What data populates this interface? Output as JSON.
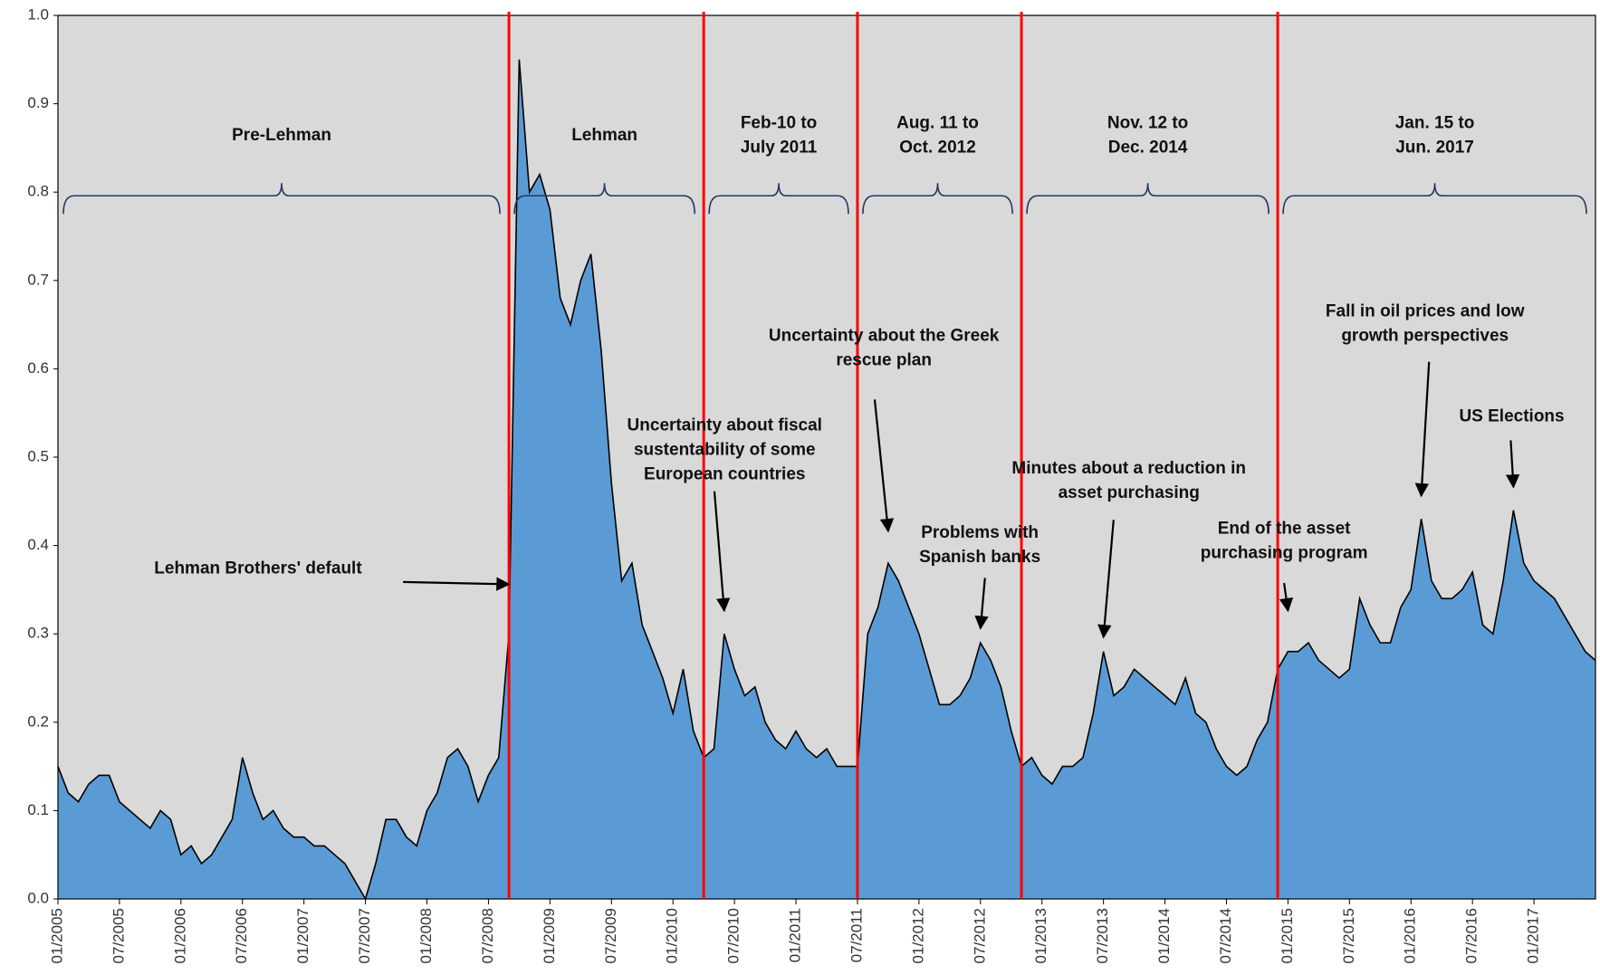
{
  "chart_data": {
    "type": "area",
    "x": [
      "2005-01",
      "2005-02",
      "2005-03",
      "2005-04",
      "2005-05",
      "2005-06",
      "2005-07",
      "2005-08",
      "2005-09",
      "2005-10",
      "2005-11",
      "2005-12",
      "2006-01",
      "2006-02",
      "2006-03",
      "2006-04",
      "2006-05",
      "2006-06",
      "2006-07",
      "2006-08",
      "2006-09",
      "2006-10",
      "2006-11",
      "2006-12",
      "2007-01",
      "2007-02",
      "2007-03",
      "2007-04",
      "2007-05",
      "2007-06",
      "2007-07",
      "2007-08",
      "2007-09",
      "2007-10",
      "2007-11",
      "2007-12",
      "2008-01",
      "2008-02",
      "2008-03",
      "2008-04",
      "2008-05",
      "2008-06",
      "2008-07",
      "2008-08",
      "2008-09",
      "2008-10",
      "2008-11",
      "2008-12",
      "2009-01",
      "2009-02",
      "2009-03",
      "2009-04",
      "2009-05",
      "2009-06",
      "2009-07",
      "2009-08",
      "2009-09",
      "2009-10",
      "2009-11",
      "2009-12",
      "2010-01",
      "2010-02",
      "2010-03",
      "2010-04",
      "2010-05",
      "2010-06",
      "2010-07",
      "2010-08",
      "2010-09",
      "2010-10",
      "2010-11",
      "2010-12",
      "2011-01",
      "2011-02",
      "2011-03",
      "2011-04",
      "2011-05",
      "2011-06",
      "2011-07",
      "2011-08",
      "2011-09",
      "2011-10",
      "2011-11",
      "2011-12",
      "2012-01",
      "2012-02",
      "2012-03",
      "2012-04",
      "2012-05",
      "2012-06",
      "2012-07",
      "2012-08",
      "2012-09",
      "2012-10",
      "2012-11",
      "2012-12",
      "2013-01",
      "2013-02",
      "2013-03",
      "2013-04",
      "2013-05",
      "2013-06",
      "2013-07",
      "2013-08",
      "2013-09",
      "2013-10",
      "2013-11",
      "2013-12",
      "2014-01",
      "2014-02",
      "2014-03",
      "2014-04",
      "2014-05",
      "2014-06",
      "2014-07",
      "2014-08",
      "2014-09",
      "2014-10",
      "2014-11",
      "2014-12",
      "2015-01",
      "2015-02",
      "2015-03",
      "2015-04",
      "2015-05",
      "2015-06",
      "2015-07",
      "2015-08",
      "2015-09",
      "2015-10",
      "2015-11",
      "2015-12",
      "2016-01",
      "2016-02",
      "2016-03",
      "2016-04",
      "2016-05",
      "2016-06",
      "2016-07",
      "2016-08",
      "2016-09",
      "2016-10",
      "2016-11",
      "2016-12",
      "2017-01",
      "2017-02",
      "2017-03",
      "2017-04",
      "2017-05",
      "2017-06",
      "2017-07"
    ],
    "values": [
      0.15,
      0.12,
      0.11,
      0.13,
      0.14,
      0.14,
      0.11,
      0.1,
      0.09,
      0.08,
      0.1,
      0.09,
      0.05,
      0.06,
      0.04,
      0.05,
      0.07,
      0.09,
      0.16,
      0.12,
      0.09,
      0.1,
      0.08,
      0.07,
      0.07,
      0.06,
      0.06,
      0.05,
      0.04,
      0.02,
      0.0,
      0.04,
      0.09,
      0.09,
      0.07,
      0.06,
      0.1,
      0.12,
      0.16,
      0.17,
      0.15,
      0.11,
      0.14,
      0.16,
      0.3,
      0.95,
      0.8,
      0.82,
      0.78,
      0.68,
      0.65,
      0.7,
      0.73,
      0.62,
      0.47,
      0.36,
      0.38,
      0.31,
      0.28,
      0.25,
      0.21,
      0.26,
      0.19,
      0.16,
      0.17,
      0.3,
      0.26,
      0.23,
      0.24,
      0.2,
      0.18,
      0.17,
      0.19,
      0.17,
      0.16,
      0.17,
      0.15,
      0.15,
      0.15,
      0.3,
      0.33,
      0.38,
      0.36,
      0.33,
      0.3,
      0.26,
      0.22,
      0.22,
      0.23,
      0.25,
      0.29,
      0.27,
      0.24,
      0.19,
      0.15,
      0.16,
      0.14,
      0.13,
      0.15,
      0.15,
      0.16,
      0.21,
      0.28,
      0.23,
      0.24,
      0.26,
      0.25,
      0.24,
      0.23,
      0.22,
      0.25,
      0.21,
      0.2,
      0.17,
      0.15,
      0.14,
      0.15,
      0.18,
      0.2,
      0.26,
      0.28,
      0.28,
      0.29,
      0.27,
      0.26,
      0.25,
      0.26,
      0.34,
      0.31,
      0.29,
      0.29,
      0.33,
      0.35,
      0.43,
      0.36,
      0.34,
      0.34,
      0.35,
      0.37,
      0.31,
      0.3,
      0.36,
      0.44,
      0.38,
      0.36,
      0.35,
      0.34,
      0.32,
      0.3,
      0.28,
      0.27
    ],
    "color": "#5b9bd5",
    "line_color": "#000000",
    "background": "#d9d9d9",
    "xlim": [
      "2005-01",
      "2017-07"
    ],
    "xticks": [
      {
        "value": "2005-01",
        "label": "01/2005"
      },
      {
        "value": "2005-07",
        "label": "07/2005"
      },
      {
        "value": "2006-01",
        "label": "01/2006"
      },
      {
        "value": "2006-07",
        "label": "07/2006"
      },
      {
        "value": "2007-01",
        "label": "01/2007"
      },
      {
        "value": "2007-07",
        "label": "07/2007"
      },
      {
        "value": "2008-01",
        "label": "01/2008"
      },
      {
        "value": "2008-07",
        "label": "07/2008"
      },
      {
        "value": "2009-01",
        "label": "01/2009"
      },
      {
        "value": "2009-07",
        "label": "07/2009"
      },
      {
        "value": "2010-01",
        "label": "01/2010"
      },
      {
        "value": "2010-07",
        "label": "07/2010"
      },
      {
        "value": "2011-01",
        "label": "01/2011"
      },
      {
        "value": "2011-07",
        "label": "07/2011"
      },
      {
        "value": "2012-01",
        "label": "01/2012"
      },
      {
        "value": "2012-07",
        "label": "07/2012"
      },
      {
        "value": "2013-01",
        "label": "01/2013"
      },
      {
        "value": "2013-07",
        "label": "07/2013"
      },
      {
        "value": "2014-01",
        "label": "01/2014"
      },
      {
        "value": "2014-07",
        "label": "07/2014"
      },
      {
        "value": "2015-01",
        "label": "01/2015"
      },
      {
        "value": "2015-07",
        "label": "07/2015"
      },
      {
        "value": "2016-01",
        "label": "01/2016"
      },
      {
        "value": "2016-07",
        "label": "07/2016"
      },
      {
        "value": "2017-01",
        "label": "01/2017"
      }
    ],
    "ylim": [
      0,
      1
    ],
    "yticks": [
      {
        "value": 0,
        "label": "0.0"
      },
      0.1,
      0.2,
      0.3,
      0.4,
      0.5,
      0.6,
      0.7,
      0.8,
      0.9,
      {
        "value": 1,
        "label": "1.0"
      }
    ],
    "period_lines": [
      "2008-09",
      "2010-04",
      "2011-07",
      "2012-11",
      "2014-12"
    ],
    "period_line_color": "#ff0000",
    "periods": [
      [
        "Pre-Lehman"
      ],
      [
        "Lehman"
      ],
      [
        "Feb-10 to",
        "July 2011"
      ],
      [
        "Aug. 11 to",
        "Oct. 2012"
      ],
      [
        "Nov. 12  to",
        "Dec. 2014"
      ],
      [
        "Jan. 15  to",
        "Jun. 2017"
      ]
    ],
    "brace_color": "#1f3864",
    "annotations": [
      {
        "text": [
          "Lehman Brothers' default"
        ],
        "x": "2008-09",
        "y": 0.35
      },
      {
        "text": [
          "Uncertainty about fiscal",
          "sustentability of some",
          "European countries"
        ],
        "x": "2010-06",
        "y": 0.32
      },
      {
        "text": [
          "Uncertainty about the Greek",
          "rescue plan"
        ],
        "x": "2011-10",
        "y": 0.41
      },
      {
        "text": [
          "Problems with",
          "Spanish banks"
        ],
        "x": "2012-07",
        "y": 0.3
      },
      {
        "text": [
          "Minutes about a reduction in",
          "asset purchasing"
        ],
        "x": "2013-07",
        "y": 0.29
      },
      {
        "text": [
          "End of the asset",
          "purchasing program"
        ],
        "x": "2015-01",
        "y": 0.32
      },
      {
        "text": [
          "Fall in oil prices and low",
          "growth perspectives"
        ],
        "x": "2016-02",
        "y": 0.45
      },
      {
        "text": [
          "US Elections"
        ],
        "x": "2016-11",
        "y": 0.46
      }
    ]
  }
}
